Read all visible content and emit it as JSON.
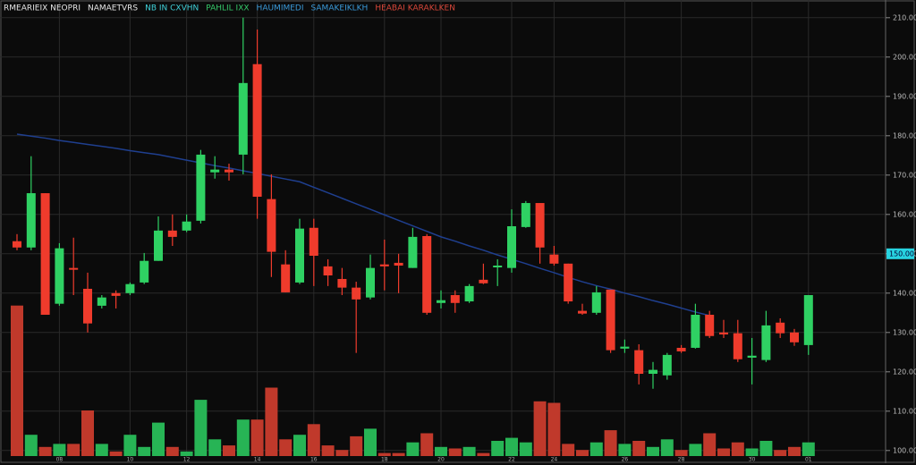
{
  "chart_data": {
    "type": "candlestick",
    "legend": [
      {
        "text": "RMEARIEIX NEOPRI",
        "color": "#e6e6e6"
      },
      {
        "text": "NAMAETVRS",
        "color": "#e6e6e6"
      },
      {
        "text": "NB IN CXVHN",
        "color": "#3fd0d8"
      },
      {
        "text": "PAHLIL IXX",
        "color": "#35c96a"
      },
      {
        "text": "HAUMIMEDI",
        "color": "#3a9ad9"
      },
      {
        "text": "SAMAKEIKLKH",
        "color": "#3a9ad9"
      },
      {
        "text": "HEABAI KARAKLKEN",
        "color": "#d9473a"
      }
    ],
    "categories": [
      null,
      null,
      null,
      "08",
      null,
      null,
      null,
      null,
      "10",
      null,
      null,
      null,
      "12",
      null,
      null,
      null,
      null,
      "14",
      null,
      null,
      null,
      "16",
      null,
      null,
      null,
      null,
      "18",
      null,
      null,
      null,
      "20",
      null,
      null,
      null,
      null,
      "22",
      null,
      null,
      "24",
      null,
      null,
      null,
      null,
      "26",
      null,
      null,
      null,
      "28",
      null,
      null,
      null,
      null,
      "30",
      null,
      null,
      null,
      "01"
    ],
    "open": [
      153.2,
      151.6,
      165.4,
      137.3,
      146.4,
      141.1,
      136.8,
      140.0,
      140.0,
      142.7,
      148.2,
      155.9,
      155.9,
      158.4,
      170.7,
      171.4,
      175.2,
      198.2,
      163.9,
      147.3,
      142.7,
      156.6,
      146.8,
      143.6,
      141.4,
      138.9,
      147.3,
      147.7,
      146.4,
      154.5,
      137.5,
      139.5,
      137.9,
      143.4,
      146.6,
      146.4,
      156.8,
      162.9,
      149.8,
      147.5,
      135.5,
      135.0,
      140.9,
      125.9,
      125.5,
      119.5,
      119.1,
      126.1,
      126.1,
      134.5,
      130.0,
      129.8,
      123.6,
      123.0,
      132.5,
      130.0,
      126.8
    ],
    "high": [
      155.0,
      174.8,
      165.4,
      152.7,
      154.1,
      145.2,
      139.5,
      140.7,
      142.7,
      150.2,
      159.5,
      160.0,
      160.0,
      176.4,
      174.8,
      172.9,
      210.0,
      207.0,
      170.2,
      150.9,
      158.9,
      158.9,
      148.6,
      146.4,
      142.9,
      149.8,
      153.6,
      150.0,
      156.6,
      155.0,
      140.7,
      140.7,
      142.3,
      147.5,
      148.6,
      161.3,
      163.4,
      162.9,
      152.0,
      147.5,
      137.3,
      141.8,
      140.9,
      128.2,
      127.0,
      122.5,
      124.8,
      126.8,
      137.3,
      135.5,
      133.2,
      133.2,
      128.6,
      135.5,
      133.6,
      130.9,
      139.5
    ],
    "low": [
      150.9,
      150.9,
      134.5,
      136.8,
      139.5,
      130.0,
      136.1,
      136.1,
      139.5,
      142.3,
      148.2,
      152.0,
      155.5,
      157.7,
      169.1,
      168.6,
      170.2,
      158.9,
      144.1,
      140.2,
      142.3,
      141.8,
      141.8,
      139.5,
      124.8,
      138.4,
      140.7,
      140.0,
      146.4,
      134.5,
      136.1,
      135.0,
      137.5,
      142.3,
      141.8,
      145.2,
      156.6,
      147.5,
      147.0,
      137.3,
      134.5,
      134.5,
      124.8,
      124.8,
      116.8,
      115.7,
      118.0,
      124.8,
      125.9,
      128.6,
      128.6,
      122.5,
      116.8,
      122.5,
      128.6,
      126.6,
      124.3
    ],
    "close": [
      151.6,
      165.4,
      134.5,
      151.4,
      146.2,
      132.3,
      138.9,
      139.3,
      142.3,
      148.2,
      155.9,
      154.3,
      158.2,
      175.2,
      171.4,
      170.7,
      193.4,
      164.5,
      150.5,
      140.2,
      156.4,
      149.5,
      144.5,
      141.4,
      138.4,
      146.4,
      146.8,
      147.0,
      154.3,
      135.0,
      138.2,
      137.5,
      141.8,
      142.5,
      147.0,
      157.0,
      162.9,
      151.6,
      147.5,
      137.9,
      134.8,
      140.2,
      125.5,
      126.4,
      119.5,
      120.5,
      124.3,
      125.2,
      134.5,
      129.1,
      129.5,
      123.2,
      124.1,
      131.8,
      129.8,
      127.5,
      139.5
    ],
    "volume": [
      99,
      14,
      6,
      8,
      8,
      30,
      8,
      3,
      14,
      6,
      22,
      6,
      3,
      37,
      11,
      7,
      24,
      24,
      45,
      11,
      14,
      21,
      7,
      4,
      13,
      18,
      2,
      2,
      9,
      15,
      6,
      5,
      6,
      2,
      10,
      12,
      9,
      36,
      35,
      8,
      4,
      9,
      17,
      8,
      10,
      6,
      11,
      4,
      8,
      15,
      5,
      9,
      5,
      10,
      4,
      6,
      9
    ],
    "moving_average": {
      "color": "#1f3f8f",
      "values": [
        180.4,
        179.9,
        179.4,
        178.8,
        178.3,
        177.8,
        177.3,
        176.8,
        176.2,
        175.7,
        175.2,
        174.5,
        173.8,
        173.1,
        172.4,
        171.8,
        171.1,
        170.4,
        169.7,
        169.0,
        168.3,
        166.9,
        165.5,
        164.1,
        162.7,
        161.3,
        159.9,
        158.5,
        157.1,
        155.7,
        154.3,
        153.2,
        152.0,
        150.9,
        149.7,
        148.6,
        147.5,
        146.3,
        145.2,
        144.0,
        142.9,
        141.9,
        141.0,
        140.0,
        139.1,
        138.1,
        137.2,
        136.2,
        135.2,
        134.3,
        null,
        null,
        null,
        null,
        null,
        null,
        null
      ]
    },
    "up_color": "#2fd163",
    "down_color": "#ef3b2c",
    "up_volume_color": "#27b455",
    "down_volume_color": "#c0392b",
    "ylim": [
      99.5,
      214.5
    ],
    "yticks": [
      {
        "value": 100,
        "label": "100.00"
      },
      {
        "value": 110,
        "label": "110.00"
      },
      {
        "value": 120,
        "label": "120.00"
      },
      {
        "value": 130,
        "label": "130.00"
      },
      {
        "value": 140,
        "label": "140.00"
      },
      {
        "value": 150,
        "label": "150.00"
      },
      {
        "value": 160,
        "label": "160.00"
      },
      {
        "value": 170,
        "label": "170.00"
      },
      {
        "value": 180,
        "label": "180.00"
      },
      {
        "value": 190,
        "label": "190.00"
      },
      {
        "value": 200,
        "label": "200.00"
      },
      {
        "value": 210,
        "label": "210.00"
      }
    ],
    "vlim": [
      0,
      100
    ],
    "price_marker": {
      "value": 150,
      "label": "150.00",
      "color": "#27d3e0"
    },
    "grid": true
  }
}
